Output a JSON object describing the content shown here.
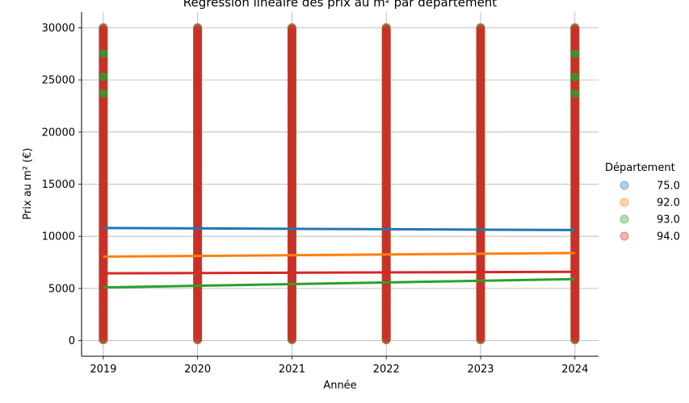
{
  "chart_data": {
    "type": "scatter",
    "title": "Régression linéaire des prix au m² par département",
    "xlabel": "Année",
    "ylabel": "Prix au m² (€)",
    "x_ticks": [
      2019,
      2020,
      2021,
      2022,
      2023,
      2024
    ],
    "y_ticks": [
      0,
      5000,
      10000,
      15000,
      20000,
      25000,
      30000
    ],
    "xlim": [
      2018.77,
      2024.25
    ],
    "ylim": [
      -1500,
      31500
    ],
    "grid": true,
    "legend": {
      "title": "Département",
      "position": "right"
    },
    "point_range": {
      "min": 0,
      "max": 30000
    },
    "series": [
      {
        "name": "75.0",
        "color": "#1f77b4",
        "regression": {
          "x": [
            2019,
            2024
          ],
          "y": [
            10800,
            10600
          ]
        }
      },
      {
        "name": "92.0",
        "color": "#ff7f0e",
        "regression": {
          "x": [
            2019,
            2024
          ],
          "y": [
            8050,
            8400
          ]
        }
      },
      {
        "name": "93.0",
        "color": "#2ca02c",
        "regression": {
          "x": [
            2019,
            2024
          ],
          "y": [
            5100,
            5900
          ]
        }
      },
      {
        "name": "94.0",
        "color": "#d62728",
        "regression": {
          "x": [
            2019,
            2024
          ],
          "y": [
            6450,
            6600
          ]
        }
      }
    ]
  }
}
